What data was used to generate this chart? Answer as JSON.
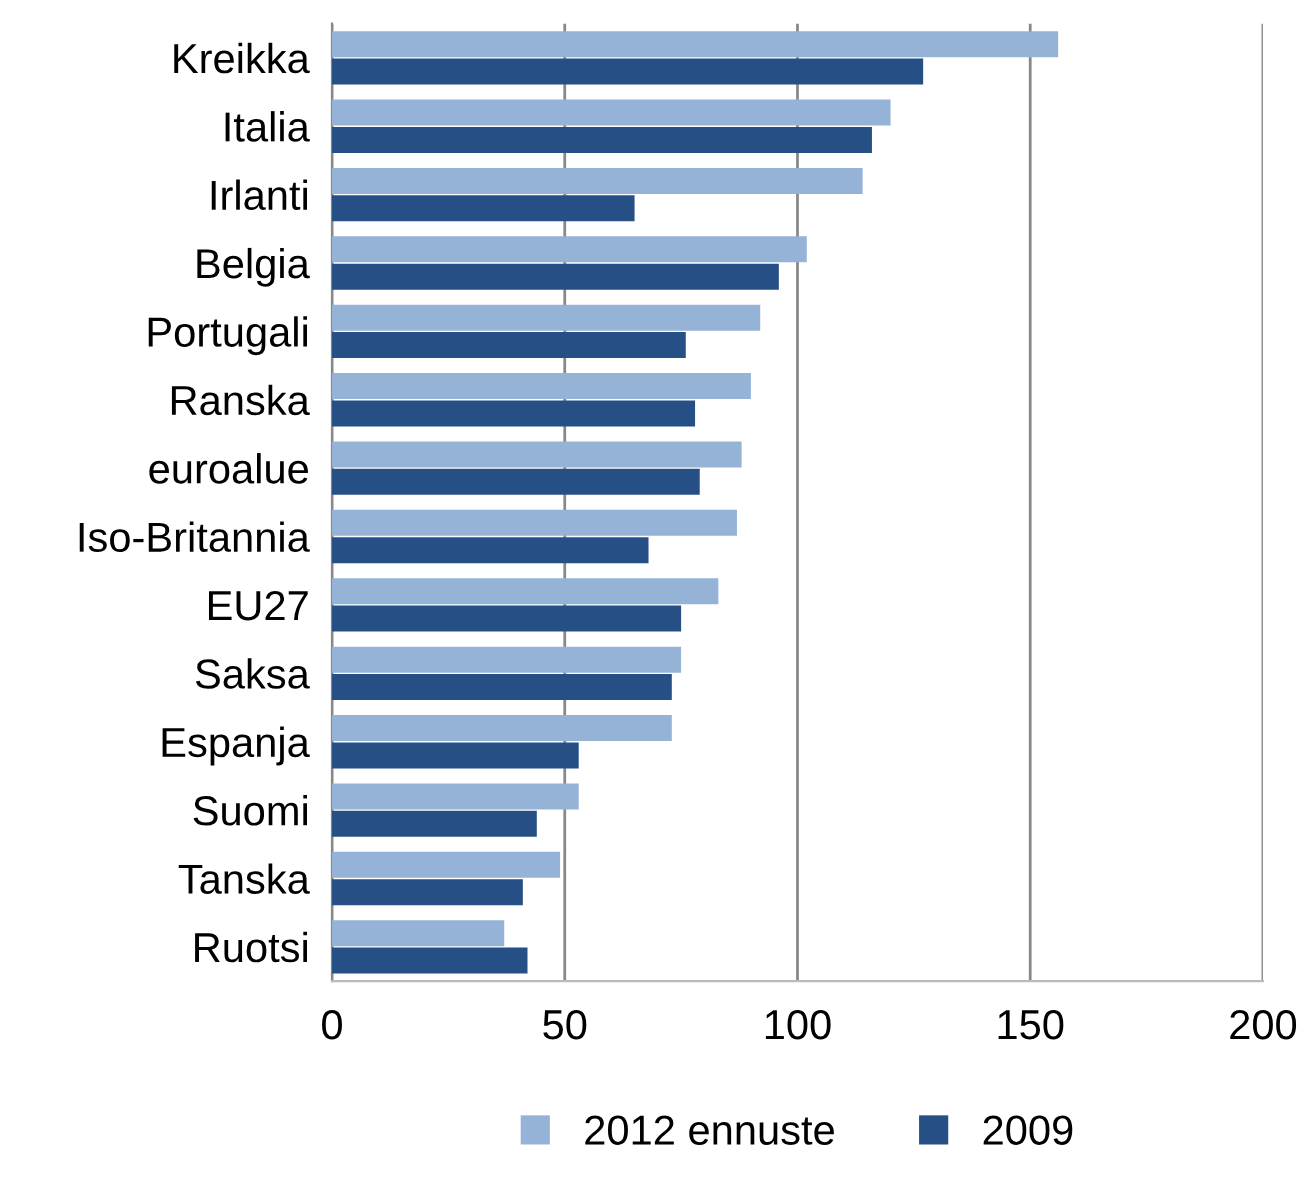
{
  "chart_data": {
    "type": "bar",
    "orientation": "horizontal",
    "categories": [
      "Kreikka",
      "Italia",
      "Irlanti",
      "Belgia",
      "Portugali",
      "Ranska",
      "euroalue",
      "Iso-Britannia",
      "EU27",
      "Saksa",
      "Espanja",
      "Suomi",
      "Tanska",
      "Ruotsi"
    ],
    "series": [
      {
        "name": "2012 ennuste",
        "color": "#95b3d7",
        "values": [
          156,
          120,
          114,
          102,
          92,
          90,
          88,
          87,
          83,
          75,
          73,
          53,
          49,
          37
        ]
      },
      {
        "name": "2009",
        "color": "#254f85",
        "values": [
          127,
          116,
          65,
          96,
          76,
          78,
          79,
          68,
          75,
          73,
          53,
          44,
          41,
          42
        ]
      }
    ],
    "xlim": [
      0,
      200
    ],
    "xticks": [
      0,
      50,
      100,
      150,
      200
    ],
    "grid": "x",
    "legend": "bottom"
  }
}
